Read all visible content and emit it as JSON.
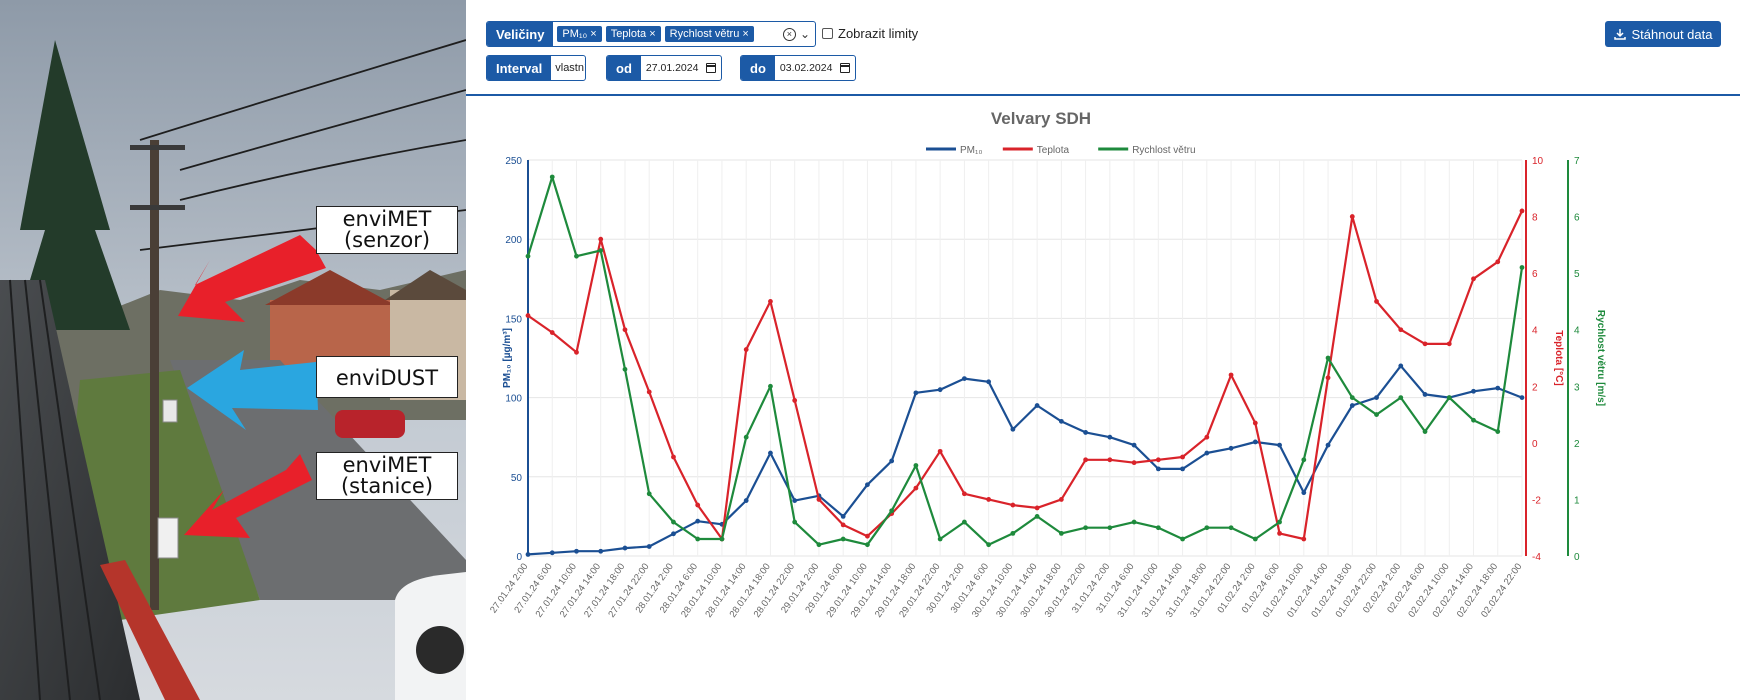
{
  "photo": {
    "callouts": {
      "senzor": [
        "enviMET",
        "(senzor)"
      ],
      "dust": "enviDUST",
      "stanice": [
        "enviMET",
        "(stanice)"
      ]
    },
    "colors": {
      "arrow_red": "#e8202a",
      "arrow_blue": "#2aa6e0"
    }
  },
  "toolbar": {
    "veliciny_label": "Veličiny",
    "chips": [
      "PM₁₀ ×",
      "Teplota ×",
      "Rychlost větru ×"
    ],
    "limits_label": "Zobrazit limity",
    "interval_label": "Interval",
    "interval_value": "vlastní",
    "od_label": "od",
    "od_value": "27.01.2024",
    "do_label": "do",
    "do_value": "03.02.2024",
    "download_label": "Stáhnout data"
  },
  "chart_data": {
    "type": "line",
    "title": "Velvary SDH",
    "legend_position": "top-center",
    "grid": true,
    "x": [
      "27.01.24 2:00",
      "27.01.24 6:00",
      "27.01.24 10:00",
      "27.01.24 14:00",
      "27.01.24 18:00",
      "27.01.24 22:00",
      "28.01.24 2:00",
      "28.01.24 6:00",
      "28.01.24 10:00",
      "28.01.24 14:00",
      "28.01.24 18:00",
      "28.01.24 22:00",
      "29.01.24 2:00",
      "29.01.24 6:00",
      "29.01.24 10:00",
      "29.01.24 14:00",
      "29.01.24 18:00",
      "29.01.24 22:00",
      "30.01.24 2:00",
      "30.01.24 6:00",
      "30.01.24 10:00",
      "30.01.24 14:00",
      "30.01.24 18:00",
      "30.01.24 22:00",
      "31.01.24 2:00",
      "31.01.24 6:00",
      "31.01.24 10:00",
      "31.01.24 14:00",
      "31.01.24 18:00",
      "31.01.24 22:00",
      "01.02.24 2:00",
      "01.02.24 6:00",
      "01.02.24 10:00",
      "01.02.24 14:00",
      "01.02.24 18:00",
      "01.02.24 22:00",
      "02.02.24 2:00",
      "02.02.24 6:00",
      "02.02.24 10:00",
      "02.02.24 14:00",
      "02.02.24 18:00",
      "02.02.24 22:00"
    ],
    "axes": {
      "left": {
        "label": "PM₁₀ [µg/m³]",
        "range": [
          0,
          250
        ],
        "ticks": [
          0,
          50,
          100,
          150,
          200,
          250
        ],
        "color": "#1b4f93"
      },
      "right1": {
        "label": "Teplota [°C]",
        "range": [
          -4,
          10
        ],
        "ticks": [
          -4,
          -2,
          0,
          2,
          4,
          6,
          8,
          10
        ],
        "color": "#d9232a"
      },
      "right2": {
        "label": "Rychlost větru [m/s]",
        "range": [
          0,
          7
        ],
        "ticks": [
          0,
          1,
          2,
          3,
          4,
          5,
          6,
          7
        ],
        "color": "#1e8a3c"
      }
    },
    "series": [
      {
        "name": "PM₁₀",
        "axis": "left",
        "color": "#1b4f93",
        "values": [
          1,
          2,
          3,
          3,
          5,
          6,
          14,
          22,
          20,
          35,
          65,
          35,
          38,
          25,
          45,
          60,
          103,
          105,
          112,
          110,
          80,
          95,
          85,
          78,
          75,
          70,
          55,
          55,
          65,
          68,
          72,
          70,
          40,
          70,
          95,
          100,
          120,
          102,
          100,
          104,
          106,
          100
        ]
      },
      {
        "name": "Teplota",
        "axis": "right1",
        "color": "#d9232a",
        "values": [
          4.5,
          3.9,
          3.2,
          7.2,
          4,
          1.8,
          -0.5,
          -2.2,
          -3.4,
          3.3,
          5,
          1.5,
          -2,
          -2.9,
          -3.3,
          -2.5,
          -1.6,
          -0.3,
          -1.8,
          -2,
          -2.2,
          -2.3,
          -2,
          -0.6,
          -0.6,
          -0.7,
          -0.6,
          -0.5,
          0.2,
          2.4,
          0.7,
          -3.2,
          -3.4,
          2.3,
          8,
          5,
          4,
          3.5,
          3.5,
          5.8,
          6.4,
          8.2
        ]
      },
      {
        "name": "Rychlost větru",
        "axis": "right2",
        "color": "#1e8a3c",
        "values": [
          5.3,
          6.7,
          5.3,
          5.4,
          3.3,
          1.1,
          0.6,
          0.3,
          0.3,
          2.1,
          3,
          0.6,
          0.2,
          0.3,
          0.2,
          0.8,
          1.6,
          0.3,
          0.6,
          0.2,
          0.4,
          0.7,
          0.4,
          0.5,
          0.5,
          0.6,
          0.5,
          0.3,
          0.5,
          0.5,
          0.3,
          0.6,
          1.7,
          3.5,
          2.8,
          2.5,
          2.8,
          2.2,
          2.8,
          2.4,
          2.2,
          5.1
        ]
      }
    ]
  }
}
